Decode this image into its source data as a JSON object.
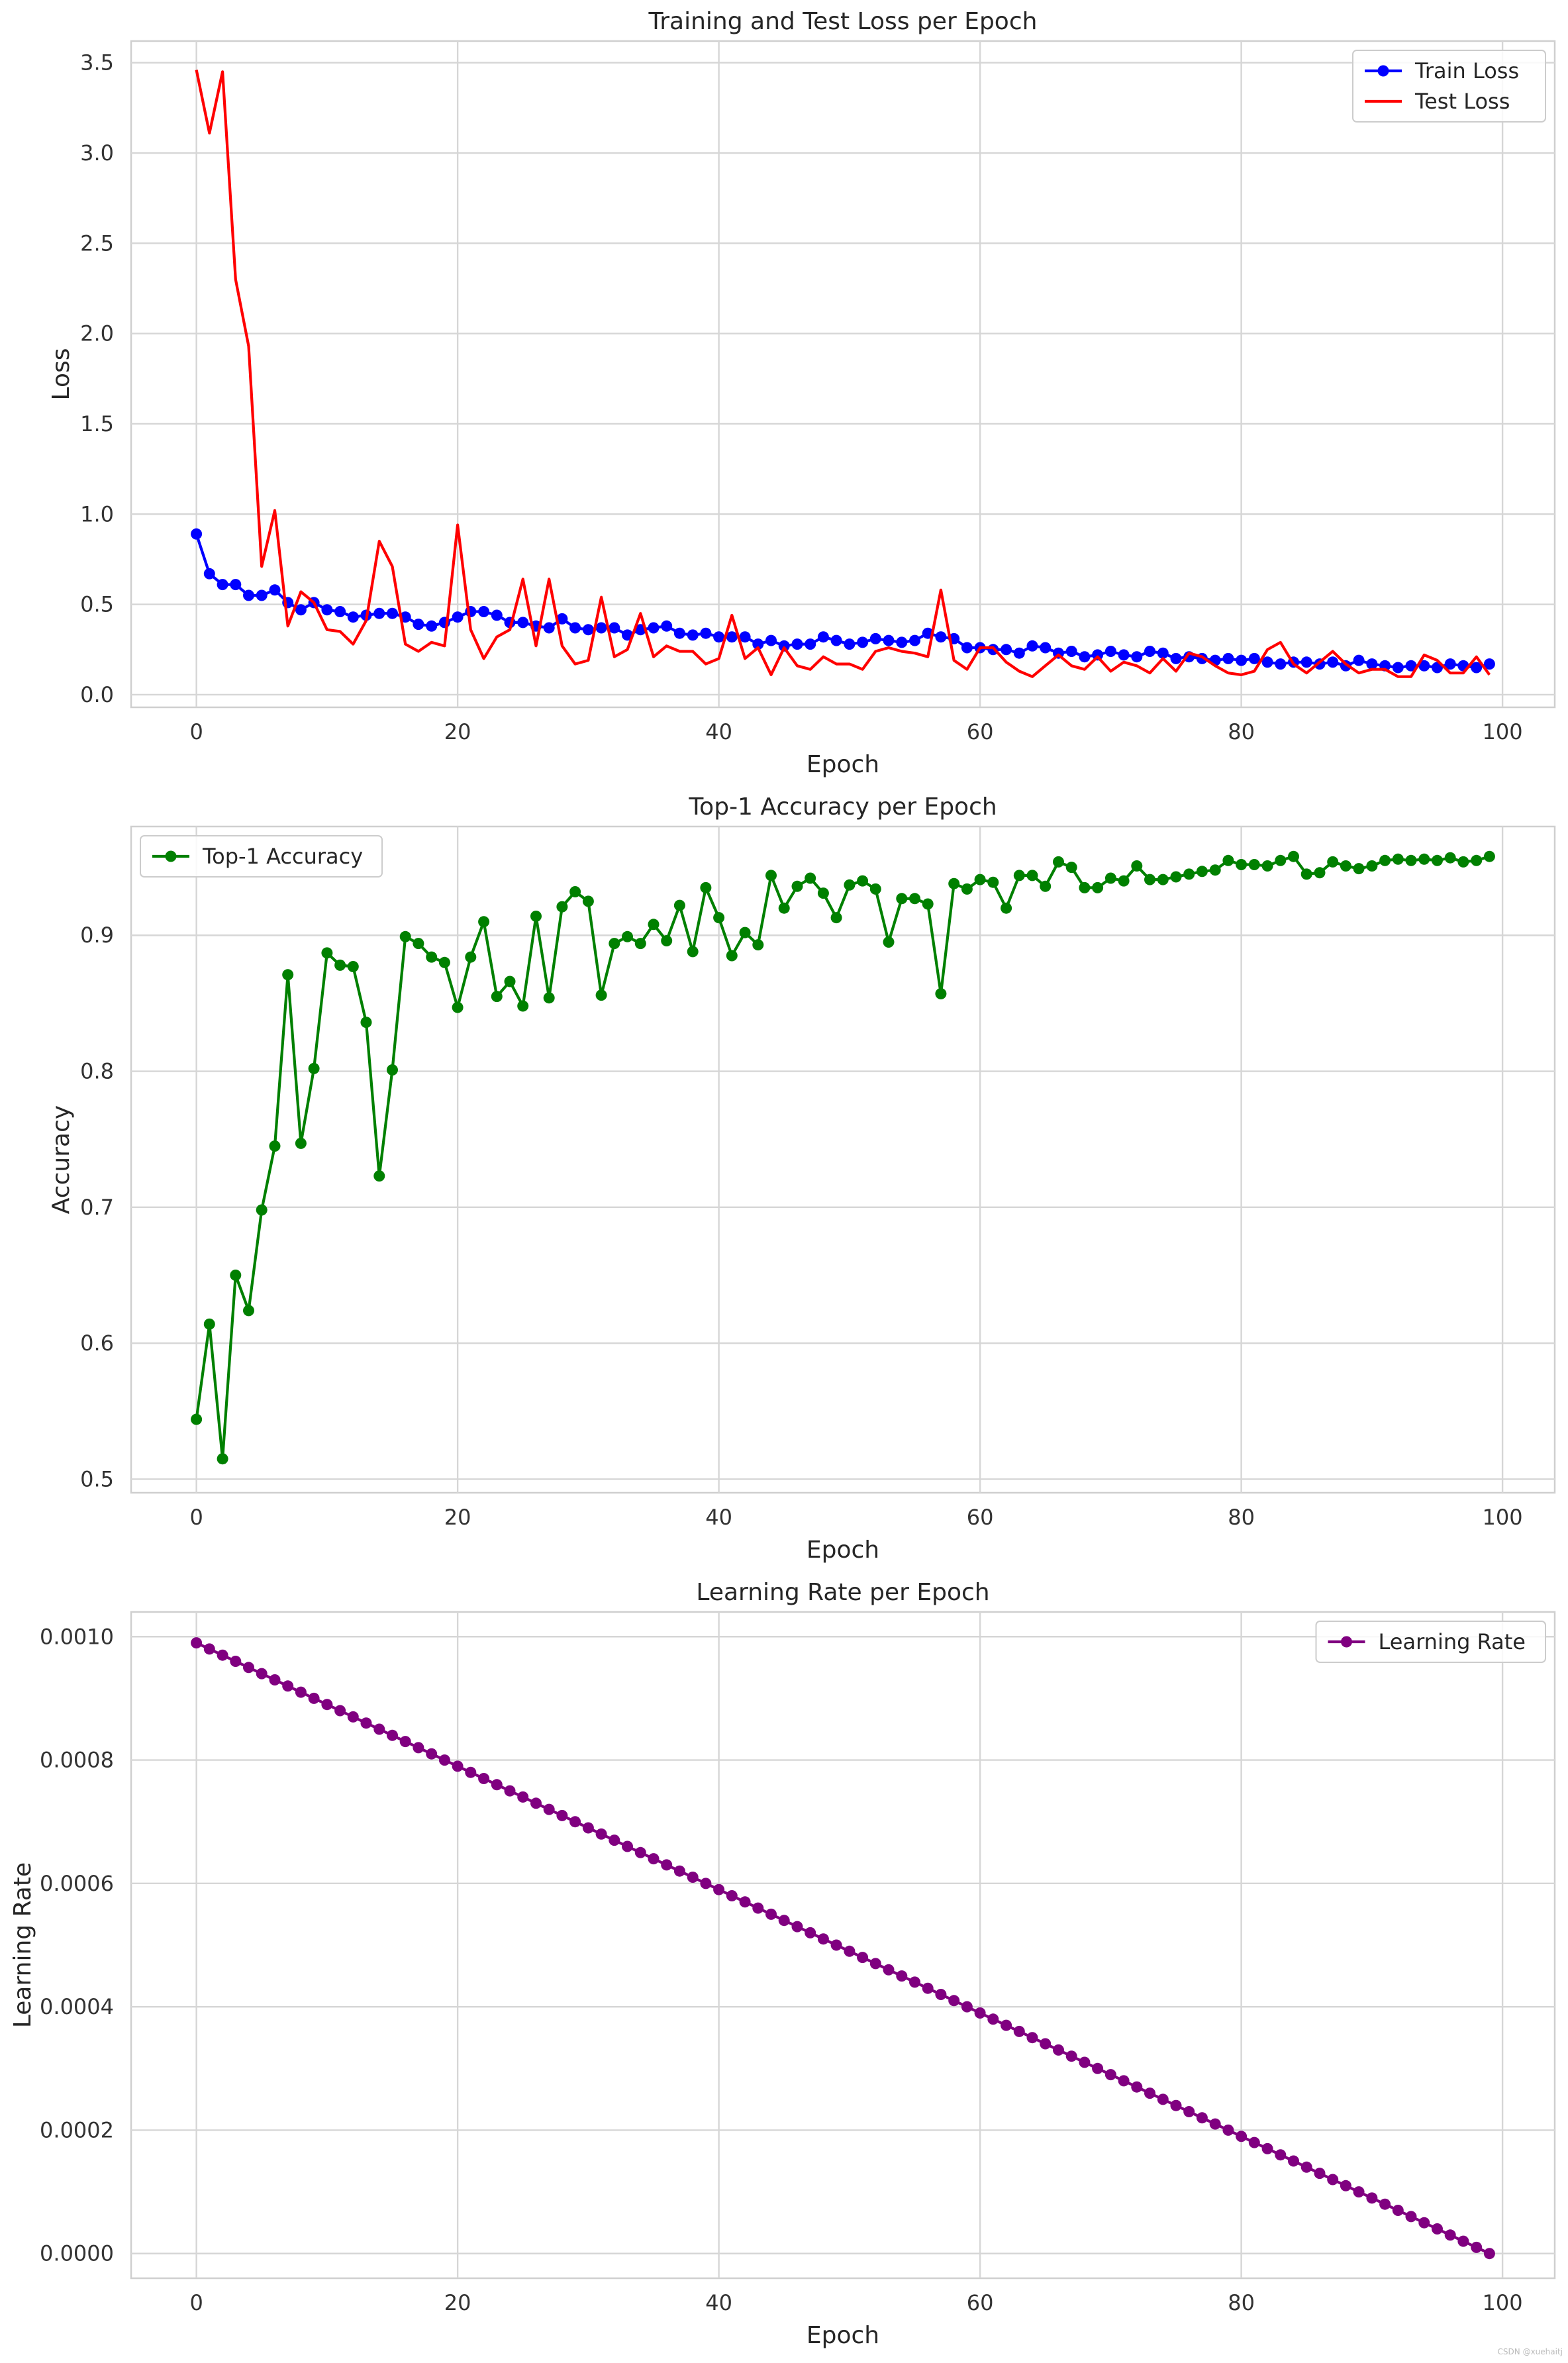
{
  "chart_data": [
    {
      "type": "line",
      "title": "Training and Test Loss per Epoch",
      "xlabel": "Epoch",
      "ylabel": "Loss",
      "xlim": [
        -5,
        104
      ],
      "ylim": [
        -0.07,
        3.62
      ],
      "xticks": [
        0,
        20,
        40,
        60,
        80,
        100
      ],
      "yticks": [
        0.0,
        0.5,
        1.0,
        1.5,
        2.0,
        2.5,
        3.0,
        3.5
      ],
      "ytick_decimals": 1,
      "grid": true,
      "legend_position": "top-right",
      "series": [
        {
          "name": "Train Loss",
          "color": "#0000ff",
          "marker": true,
          "values": [
            0.89,
            0.67,
            0.61,
            0.61,
            0.55,
            0.55,
            0.58,
            0.51,
            0.47,
            0.51,
            0.47,
            0.46,
            0.43,
            0.44,
            0.45,
            0.45,
            0.43,
            0.39,
            0.38,
            0.4,
            0.43,
            0.46,
            0.46,
            0.44,
            0.4,
            0.4,
            0.38,
            0.37,
            0.42,
            0.37,
            0.36,
            0.37,
            0.37,
            0.33,
            0.36,
            0.37,
            0.38,
            0.34,
            0.33,
            0.34,
            0.32,
            0.32,
            0.32,
            0.28,
            0.3,
            0.27,
            0.28,
            0.28,
            0.32,
            0.3,
            0.28,
            0.29,
            0.31,
            0.3,
            0.29,
            0.3,
            0.34,
            0.32,
            0.31,
            0.26,
            0.26,
            0.25,
            0.25,
            0.23,
            0.27,
            0.26,
            0.23,
            0.24,
            0.21,
            0.22,
            0.24,
            0.22,
            0.21,
            0.24,
            0.23,
            0.2,
            0.21,
            0.2,
            0.19,
            0.2,
            0.19,
            0.2,
            0.18,
            0.17,
            0.18,
            0.18,
            0.17,
            0.18,
            0.16,
            0.19,
            0.17,
            0.16,
            0.15,
            0.16,
            0.16,
            0.15,
            0.17,
            0.16,
            0.15,
            0.17
          ]
        },
        {
          "name": "Test Loss",
          "color": "#ff0000",
          "marker": false,
          "values": [
            3.46,
            3.11,
            3.45,
            2.3,
            1.93,
            0.71,
            1.02,
            0.38,
            0.57,
            0.51,
            0.36,
            0.35,
            0.28,
            0.41,
            0.85,
            0.71,
            0.28,
            0.24,
            0.29,
            0.27,
            0.94,
            0.36,
            0.2,
            0.32,
            0.36,
            0.64,
            0.27,
            0.64,
            0.27,
            0.17,
            0.19,
            0.54,
            0.21,
            0.25,
            0.45,
            0.21,
            0.27,
            0.24,
            0.24,
            0.17,
            0.2,
            0.44,
            0.2,
            0.26,
            0.11,
            0.26,
            0.16,
            0.14,
            0.21,
            0.17,
            0.17,
            0.14,
            0.24,
            0.26,
            0.24,
            0.23,
            0.21,
            0.58,
            0.19,
            0.14,
            0.26,
            0.26,
            0.18,
            0.13,
            0.1,
            0.16,
            0.22,
            0.16,
            0.14,
            0.21,
            0.13,
            0.18,
            0.16,
            0.12,
            0.2,
            0.13,
            0.23,
            0.21,
            0.16,
            0.12,
            0.11,
            0.13,
            0.25,
            0.29,
            0.17,
            0.12,
            0.18,
            0.24,
            0.17,
            0.12,
            0.14,
            0.14,
            0.1,
            0.1,
            0.22,
            0.19,
            0.12,
            0.12,
            0.21,
            0.11
          ]
        }
      ]
    },
    {
      "type": "line",
      "title": "Top-1 Accuracy per Epoch",
      "xlabel": "Epoch",
      "ylabel": "Accuracy",
      "xlim": [
        -5,
        104
      ],
      "ylim": [
        0.49,
        0.98
      ],
      "xticks": [
        0,
        20,
        40,
        60,
        80,
        100
      ],
      "yticks": [
        0.5,
        0.6,
        0.7,
        0.8,
        0.9
      ],
      "ytick_decimals": 1,
      "grid": true,
      "legend_position": "top-left",
      "series": [
        {
          "name": "Top-1 Accuracy",
          "color": "#008000",
          "marker": true,
          "values": [
            0.544,
            0.614,
            0.515,
            0.65,
            0.624,
            0.698,
            0.745,
            0.871,
            0.747,
            0.802,
            0.887,
            0.878,
            0.877,
            0.836,
            0.723,
            0.801,
            0.899,
            0.894,
            0.884,
            0.88,
            0.847,
            0.884,
            0.91,
            0.855,
            0.866,
            0.848,
            0.914,
            0.854,
            0.921,
            0.932,
            0.925,
            0.856,
            0.894,
            0.899,
            0.894,
            0.908,
            0.896,
            0.922,
            0.888,
            0.935,
            0.913,
            0.885,
            0.902,
            0.893,
            0.944,
            0.92,
            0.936,
            0.942,
            0.931,
            0.913,
            0.937,
            0.94,
            0.934,
            0.895,
            0.927,
            0.927,
            0.923,
            0.857,
            0.938,
            0.934,
            0.941,
            0.939,
            0.92,
            0.944,
            0.944,
            0.936,
            0.954,
            0.95,
            0.935,
            0.935,
            0.942,
            0.94,
            0.951,
            0.941,
            0.941,
            0.943,
            0.945,
            0.947,
            0.948,
            0.955,
            0.952,
            0.952,
            0.951,
            0.955,
            0.958,
            0.945,
            0.946,
            0.954,
            0.951,
            0.949,
            0.951,
            0.955,
            0.956,
            0.955,
            0.956,
            0.955,
            0.957,
            0.954,
            0.955,
            0.958
          ]
        }
      ]
    },
    {
      "type": "line",
      "title": "Learning Rate per Epoch",
      "xlabel": "Epoch",
      "ylabel": "Learning Rate",
      "xlim": [
        -5,
        104
      ],
      "ylim": [
        -4e-05,
        0.00104
      ],
      "xticks": [
        0,
        20,
        40,
        60,
        80,
        100
      ],
      "yticks": [
        0.0,
        0.0002,
        0.0004,
        0.0006,
        0.0008,
        0.001
      ],
      "ytick_decimals": 4,
      "grid": true,
      "legend_position": "top-right",
      "series": [
        {
          "name": "Learning Rate",
          "color": "#800080",
          "marker": true,
          "linear": {
            "start": 0.00099,
            "step": -1e-05,
            "count": 100
          }
        }
      ]
    }
  ],
  "watermark": "CSDN @xuehaitj"
}
